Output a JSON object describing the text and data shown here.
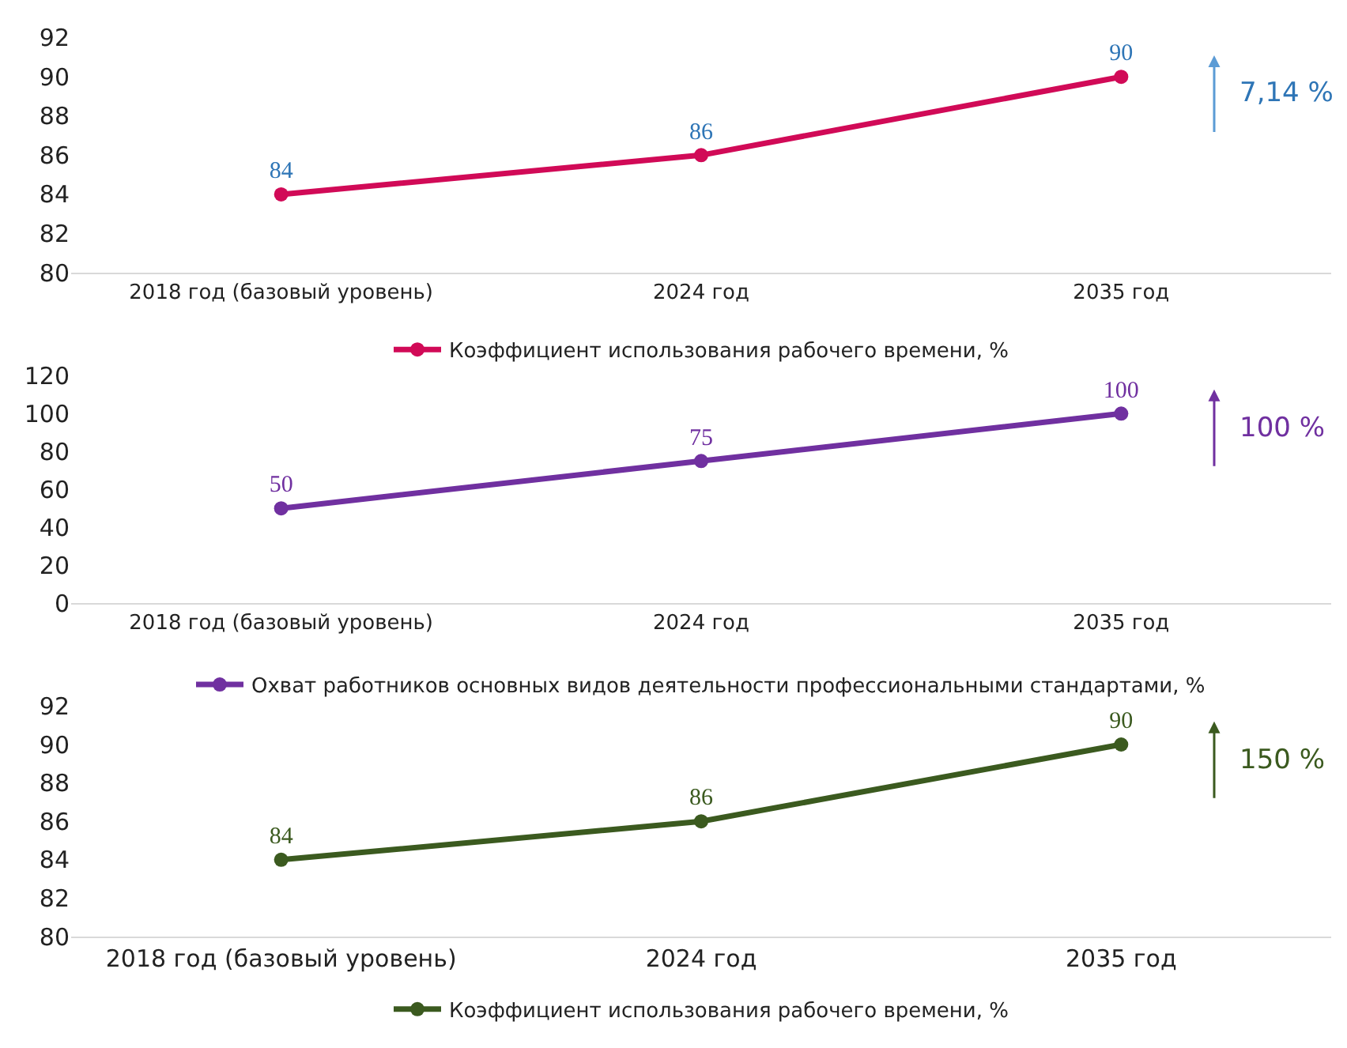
{
  "chart_data": [
    {
      "type": "line",
      "categories": [
        "2018 год (базовый уровень)",
        "2024 год",
        "2035 год"
      ],
      "series": [
        {
          "name": "Коэффициент использования рабочего времени, %",
          "color": "#d10a57",
          "values": [
            84,
            86,
            90
          ]
        }
      ],
      "ylim": [
        80,
        92
      ],
      "yticks": [
        80,
        82,
        84,
        86,
        88,
        90,
        92
      ],
      "data_labels": true,
      "marker": "circle",
      "line_style": "solid",
      "legend": "bottom",
      "annotations": [
        "7,14 %"
      ]
    },
    {
      "type": "line",
      "categories": [
        "2018 год (базовый уровень)",
        "2024 год",
        "2035 год"
      ],
      "series": [
        {
          "name": "Охват работников основных видов деятельности профессиональными стандартами, %",
          "color": "#7030a0",
          "values": [
            50,
            75,
            100
          ]
        }
      ],
      "ylim": [
        0,
        120
      ],
      "yticks": [
        0,
        20,
        40,
        60,
        80,
        100,
        120
      ],
      "data_labels": true,
      "marker": "circle",
      "line_style": "solid",
      "legend": "bottom",
      "annotations": [
        "100 %"
      ]
    },
    {
      "type": "line",
      "categories": [
        "2018 год (базовый уровень)",
        "2024 год",
        "2035 год"
      ],
      "series": [
        {
          "name": "Коэффициент использования рабочего времени, %",
          "color": "#3b5a1f",
          "values": [
            84,
            86,
            90
          ]
        }
      ],
      "ylim": [
        80,
        92
      ],
      "yticks": [
        80,
        82,
        84,
        86,
        88,
        90,
        92
      ],
      "data_labels": true,
      "marker": "circle",
      "line_style": "solid",
      "legend": "bottom",
      "annotations": [
        "150 %"
      ]
    }
  ]
}
